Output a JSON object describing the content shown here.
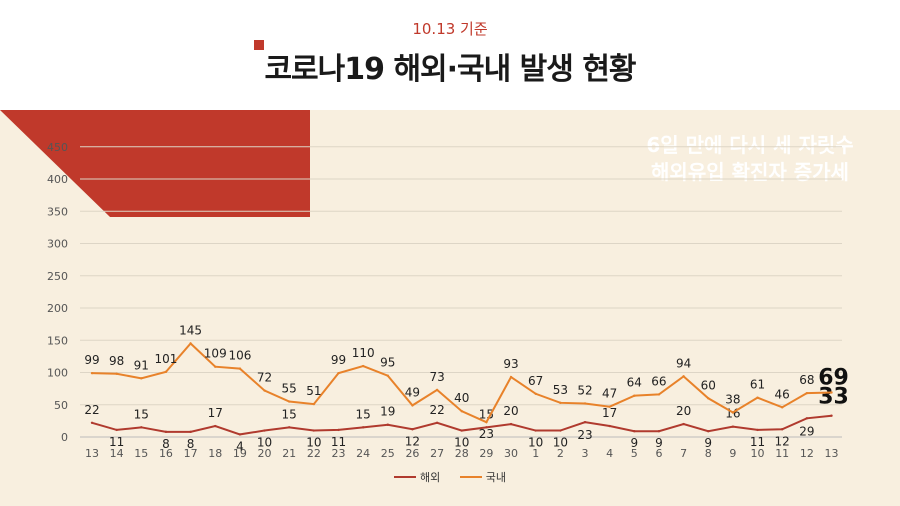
{
  "header": {
    "date": "10.13 기준",
    "title": "코로나19 해외·국내 발생 현황"
  },
  "banner": {
    "line1": "6일 만에 다시 세 자릿수",
    "line2": "해외유입 확진자 증가세",
    "color": "#c0392b"
  },
  "chart_data": {
    "type": "line",
    "categories": [
      "13",
      "14",
      "15",
      "16",
      "17",
      "18",
      "19",
      "20",
      "21",
      "22",
      "23",
      "24",
      "25",
      "26",
      "27",
      "28",
      "29",
      "30",
      "1",
      "2",
      "3",
      "4",
      "5",
      "6",
      "7",
      "8",
      "9",
      "10",
      "11",
      "12",
      "13"
    ],
    "ylim": [
      0,
      450
    ],
    "yticks": [
      "0",
      "50",
      "100",
      "150",
      "200",
      "250",
      "300",
      "350",
      "400",
      "450"
    ],
    "grid": true,
    "legend_position": "bottom",
    "series": [
      {
        "name": "해외",
        "color": "#b03a2e",
        "values": [
          22,
          11,
          15,
          8,
          8,
          17,
          4,
          10,
          15,
          10,
          11,
          15,
          19,
          12,
          22,
          10,
          15,
          20,
          10,
          10,
          23,
          17,
          9,
          9,
          20,
          9,
          16,
          11,
          12,
          29,
          33
        ]
      },
      {
        "name": "국내",
        "color": "#e8822a",
        "values": [
          99,
          98,
          91,
          101,
          145,
          109,
          106,
          72,
          55,
          51,
          99,
          110,
          95,
          49,
          73,
          40,
          23,
          93,
          67,
          53,
          52,
          47,
          64,
          66,
          94,
          60,
          38,
          61,
          46,
          68,
          69
        ]
      }
    ]
  }
}
